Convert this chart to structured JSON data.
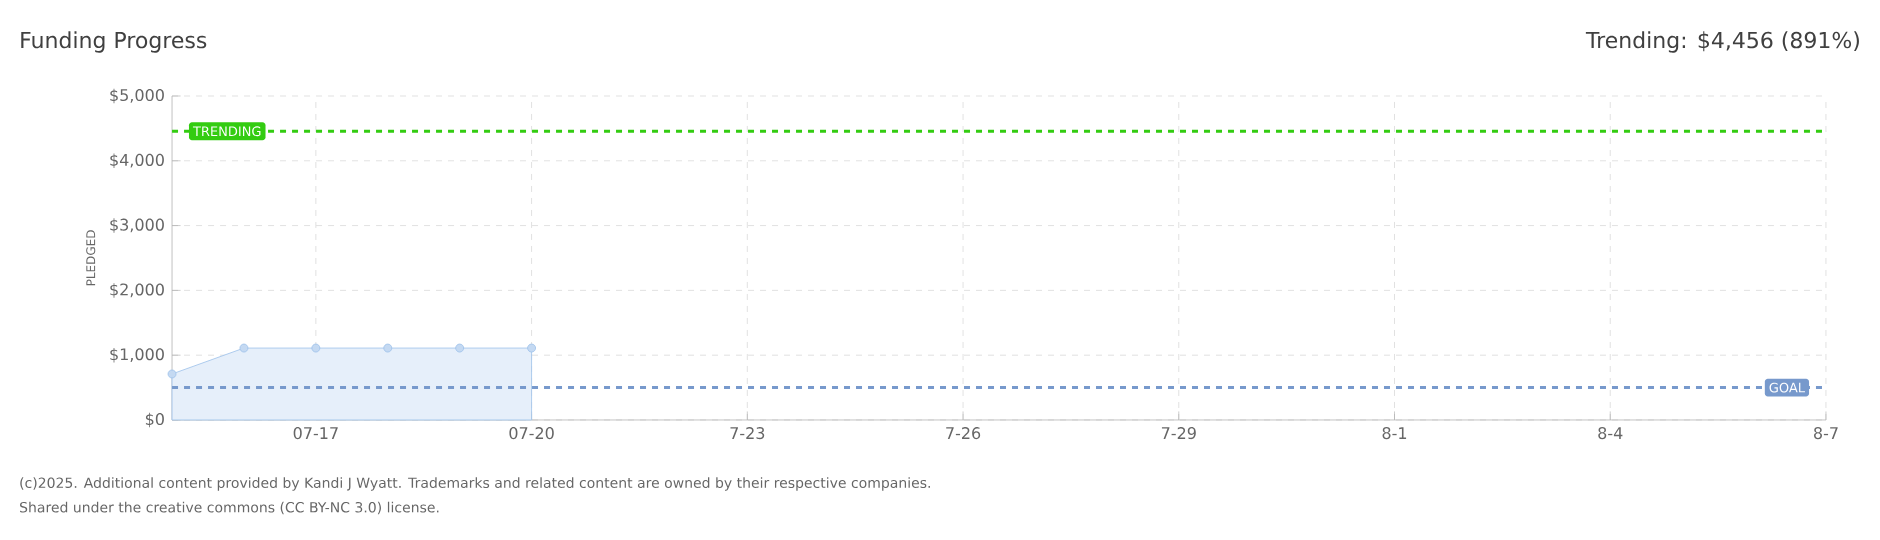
{
  "chart_data": {
    "type": "area",
    "title": "Funding Progress",
    "ylabel": "PLEDGED",
    "annotations": [
      "Trending: $4,456 (891%)",
      "(c)2025. Additional content provided by Kandi J Wyatt. Trademarks and related content are owned by their respective companies.",
      "Shared under the creative commons (CC BY-NC 3.0) license."
    ],
    "x": [
      "2025-07-15",
      "2025-07-16",
      "2025-07-17",
      "2025-07-18",
      "2025-07-19",
      "2025-07-20"
    ],
    "series": [
      {
        "color": "#9cc0ea",
        "values": [
          710,
          1110,
          1110,
          1110,
          1110,
          1110
        ]
      }
    ],
    "xlim": [
      "2025-07-15",
      "2025-08-07"
    ],
    "xticks": [
      {
        "value": "2025-07-17",
        "label": "07-17"
      },
      {
        "value": "2025-07-20",
        "label": "07-20"
      },
      {
        "value": "2025-07-23",
        "label": "7-23"
      },
      {
        "value": "2025-07-26",
        "label": "7-26"
      },
      {
        "value": "2025-07-29",
        "label": "7-29"
      },
      {
        "value": "2025-08-01",
        "label": "8-1"
      },
      {
        "value": "2025-08-04",
        "label": "8-4"
      },
      {
        "value": "2025-08-07",
        "label": "8-7"
      }
    ],
    "ylim": [
      0,
      5000
    ],
    "yticks": [
      {
        "value": 0,
        "label": "$0"
      },
      {
        "value": 1000,
        "label": "$1,000"
      },
      {
        "value": 2000,
        "label": "$2,000"
      },
      {
        "value": 3000,
        "label": "$3,000"
      },
      {
        "value": 4000,
        "label": "$4,000"
      },
      {
        "value": 5000,
        "label": "$5,000"
      }
    ],
    "ref_lines": [
      {
        "axis": "y",
        "value": 4456,
        "label": "TRENDING",
        "color": "#33cc11",
        "line_style": "dashed"
      },
      {
        "axis": "y",
        "value": 500,
        "label": "GOAL",
        "color": "#7799cc",
        "line_style": "dashed"
      }
    ],
    "grid": true,
    "marker": "circle"
  }
}
